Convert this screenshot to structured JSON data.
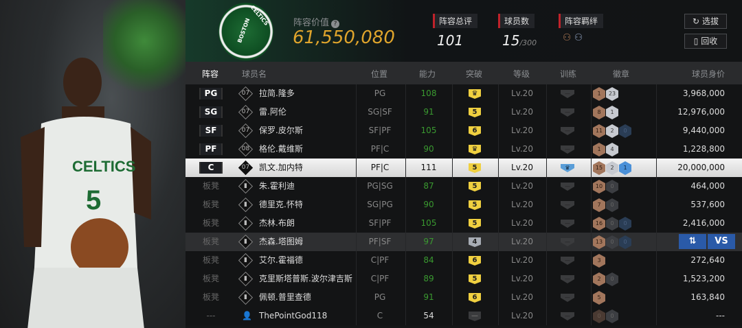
{
  "header": {
    "team_logo_text": "BOSTON CELTICS",
    "lineup_value_label": "阵容价值",
    "help_icon": "?",
    "lineup_value": "61,550,080",
    "stats": [
      {
        "label": "阵容总评",
        "value": "101"
      },
      {
        "label": "球员数",
        "value": "15",
        "max": "/300"
      },
      {
        "label": "阵容羁绊"
      }
    ],
    "buttons": {
      "draft": "选拔",
      "recycle": "回收"
    }
  },
  "columns": [
    "阵容",
    "球员名",
    "位置",
    "能力",
    "突破",
    "等级",
    "训练",
    "徽章",
    "球员身价"
  ],
  "rows": [
    {
      "slot": "PG",
      "starter": true,
      "tag": "07",
      "name": "拉简.隆多",
      "pos": "PG",
      "ovr": "108",
      "brk": "crown",
      "lv": "Lv.20",
      "train": "none",
      "badges": [
        [
          "bronze",
          "1"
        ],
        [
          "silver",
          "23"
        ]
      ],
      "price": "3,968,000"
    },
    {
      "slot": "SG",
      "starter": true,
      "tag": "07",
      "name": "雷.阿伦",
      "pos": "SG|SF",
      "ovr": "91",
      "brk": "5",
      "lv": "Lv.20",
      "train": "none",
      "badges": [
        [
          "bronze",
          "8"
        ],
        [
          "silver",
          "1"
        ]
      ],
      "price": "12,976,000"
    },
    {
      "slot": "SF",
      "starter": true,
      "tag": "07",
      "name": "保罗.皮尔斯",
      "pos": "SF|PF",
      "ovr": "105",
      "brk": "6",
      "lv": "Lv.20",
      "train": "none",
      "badges": [
        [
          "bronze",
          "11"
        ],
        [
          "silver",
          "2"
        ],
        [
          "blue0",
          "0"
        ]
      ],
      "price": "9,440,000"
    },
    {
      "slot": "PF",
      "starter": true,
      "tag": "08",
      "name": "格伦.戴维斯",
      "pos": "PF|C",
      "ovr": "90",
      "brk": "crown",
      "lv": "Lv.20",
      "train": "none",
      "badges": [
        [
          "bronze",
          "1"
        ],
        [
          "silver",
          "4"
        ]
      ],
      "price": "1,228,800"
    },
    {
      "slot": "C",
      "starter": true,
      "selected": true,
      "tag": "07",
      "name": "凯文.加内特",
      "pos": "PF|C",
      "ovr": "111",
      "brk": "5",
      "lv": "Lv.20",
      "train": "crown",
      "badges": [
        [
          "bronze",
          "15"
        ],
        [
          "silver",
          "2"
        ],
        [
          "blue",
          "1"
        ]
      ],
      "price": "20,000,000"
    },
    {
      "slot": "板凳",
      "tag": "bars",
      "name": "朱.霍利迪",
      "pos": "PG|SG",
      "ovr": "87",
      "brk": "5",
      "lv": "Lv.20",
      "train": "none",
      "badges": [
        [
          "bronze",
          "10"
        ],
        [
          "silver0",
          "0"
        ]
      ],
      "price": "464,000"
    },
    {
      "slot": "板凳",
      "tag": "bars",
      "name": "德里克.怀特",
      "pos": "SG|PG",
      "ovr": "90",
      "brk": "5",
      "lv": "Lv.20",
      "train": "none",
      "badges": [
        [
          "bronze",
          "7"
        ],
        [
          "silver0",
          "0"
        ]
      ],
      "price": "537,600"
    },
    {
      "slot": "板凳",
      "tag": "bars",
      "name": "杰林.布朗",
      "pos": "SF|PF",
      "ovr": "105",
      "brk": "5",
      "lv": "Lv.20",
      "train": "none",
      "badges": [
        [
          "bronze",
          "16"
        ],
        [
          "silver0",
          "0"
        ],
        [
          "blue0",
          "0"
        ]
      ],
      "price": "2,416,000"
    },
    {
      "slot": "板凳",
      "tag": "bars",
      "hovered": true,
      "name": "杰森.塔图姆",
      "pos": "PF|SF",
      "ovr": "97",
      "brk": "4",
      "brk_tier": "silver",
      "lv": "Lv.20",
      "train": "none",
      "badges": [
        [
          "bronze",
          "13"
        ],
        [
          "silver0",
          "0"
        ],
        [
          "blue0",
          "0"
        ]
      ],
      "price": "",
      "actions": {
        "swap": "⇅",
        "vs": "VS"
      }
    },
    {
      "slot": "板凳",
      "tag": "bars",
      "name": "艾尔.霍福德",
      "pos": "C|PF",
      "ovr": "84",
      "brk": "6",
      "lv": "Lv.20",
      "train": "none",
      "badges": [
        [
          "bronze",
          "3"
        ]
      ],
      "price": "272,640"
    },
    {
      "slot": "板凳",
      "tag": "bars",
      "name": "克里斯塔普斯.波尔津吉斯",
      "pos": "C|PF",
      "ovr": "89",
      "brk": "5",
      "lv": "Lv.20",
      "train": "none",
      "badges": [
        [
          "bronze",
          "2"
        ],
        [
          "silver0",
          "0"
        ]
      ],
      "price": "1,523,200"
    },
    {
      "slot": "板凳",
      "tag": "bars",
      "name": "佩顿.普里查德",
      "pos": "PG",
      "ovr": "91",
      "brk": "6",
      "lv": "Lv.20",
      "train": "none",
      "badges": [
        [
          "bronze",
          "5"
        ]
      ],
      "price": "163,840"
    },
    {
      "slot": "---",
      "tag": "user",
      "name": "ThePointGod118",
      "pos": "C",
      "ovr": "54",
      "ovr_color": "#ddd",
      "brk": "none",
      "lv": "Lv.20",
      "train": "none",
      "badges": [
        [
          "bronze0",
          "0"
        ],
        [
          "silver0",
          "0"
        ]
      ],
      "price": "---"
    }
  ],
  "colors": {
    "accent_gold": "#e0a52c",
    "rating_green": "#3a9a30",
    "stat_red": "#c0222a",
    "action_blue": "#2a5aa8"
  }
}
